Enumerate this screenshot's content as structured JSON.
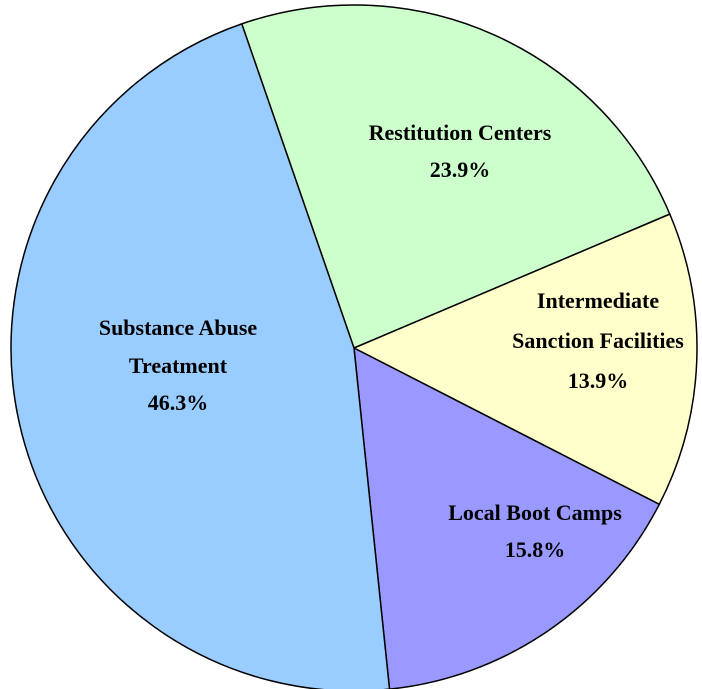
{
  "chart_data": {
    "type": "pie",
    "categories": [
      [
        "Restitution Centers"
      ],
      [
        "Intermediate",
        "Sanction Facilities"
      ],
      [
        "Local Boot Camps"
      ],
      [
        "Substance Abuse",
        "Treatment"
      ]
    ],
    "values": [
      23.9,
      13.9,
      15.8,
      46.3
    ],
    "value_labels": [
      "23.9%",
      "13.9%",
      "15.8%",
      "46.3%"
    ],
    "colors": [
      "#ccffcc",
      "#ffffcc",
      "#9999ff",
      "#99ccff"
    ]
  }
}
